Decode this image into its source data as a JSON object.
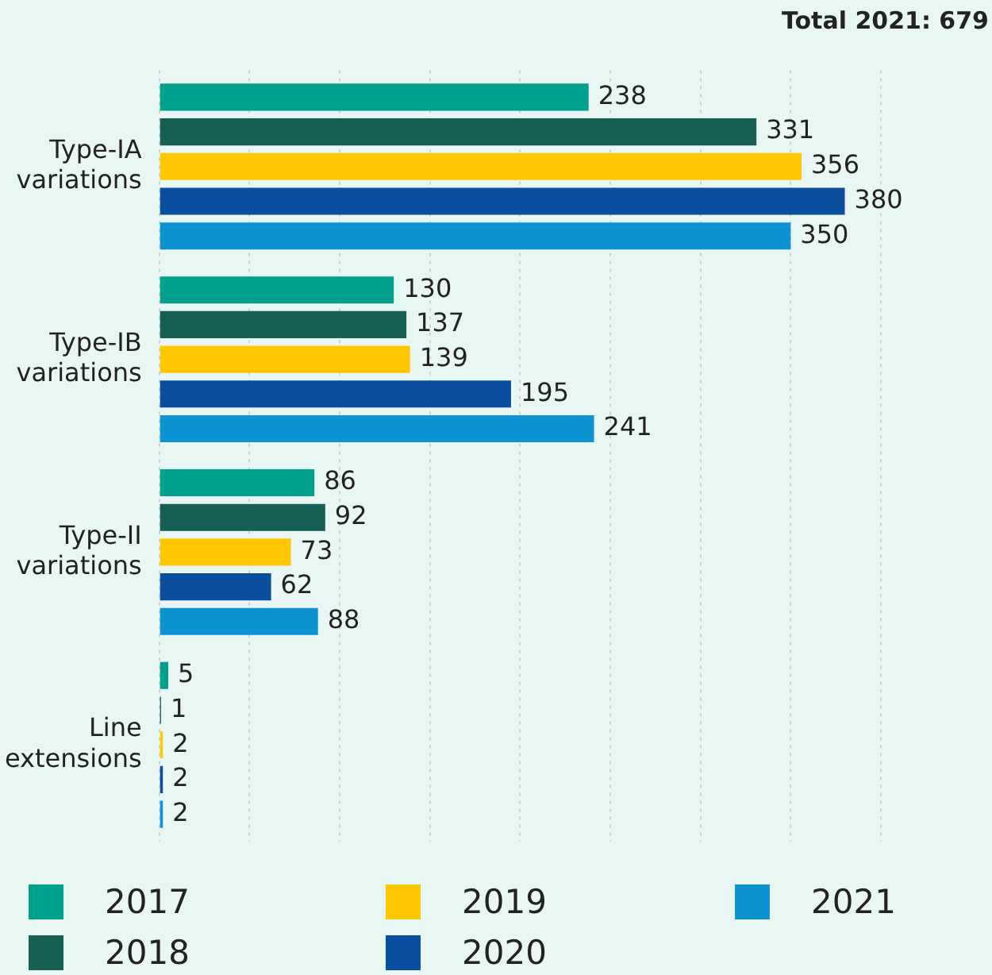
{
  "chart_data": {
    "type": "bar",
    "orientation": "horizontal",
    "title": "Total 2021: 679",
    "categories": [
      "Type-IA variations",
      "Type-IB variations",
      "Type-II variations",
      "Line extensions"
    ],
    "series": [
      {
        "name": "2017",
        "color": "#00a08c",
        "values": [
          238,
          130,
          86,
          5
        ]
      },
      {
        "name": "2018",
        "color": "#175e54",
        "values": [
          331,
          137,
          92,
          1
        ]
      },
      {
        "name": "2019",
        "color": "#ffc700",
        "values": [
          356,
          139,
          73,
          2
        ]
      },
      {
        "name": "2020",
        "color": "#0a4f9e",
        "values": [
          380,
          195,
          62,
          2
        ]
      },
      {
        "name": "2021",
        "color": "#0d93d2",
        "values": [
          350,
          241,
          88,
          2
        ]
      }
    ],
    "xlim": [
      0,
      400
    ],
    "xticks": [
      {
        "value": 0,
        "label": null
      },
      {
        "value": 50,
        "label": null
      },
      {
        "value": 100,
        "label": null
      },
      {
        "value": 150,
        "label": null
      },
      {
        "value": 200,
        "label": null
      },
      {
        "value": 250,
        "label": null
      },
      {
        "value": 300,
        "label": null
      },
      {
        "value": 350,
        "label": null
      },
      {
        "value": 400,
        "label": null
      }
    ],
    "grid": "x",
    "data_labels": true,
    "legend": "bottom"
  }
}
